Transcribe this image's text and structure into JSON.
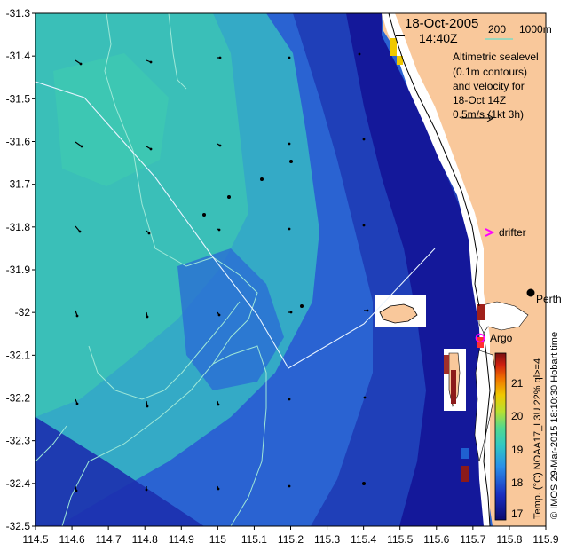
{
  "header": {
    "date": "18-Oct-2005",
    "time": "14:40Z",
    "isobath_labels": [
      "200",
      "1000m"
    ]
  },
  "info": {
    "lines": [
      "Altimetric sealevel",
      "(0.1m contours)",
      "and velocity for",
      "18-Oct 14Z",
      "0.5m/s (1kt 3h)"
    ]
  },
  "places": {
    "perth": "Perth",
    "drifter": "drifter",
    "argo": "Argo"
  },
  "colorbar": {
    "ticks": [
      "21",
      "20",
      "19",
      "18",
      "17"
    ],
    "label": "Temp. (°C) NOAA17_L3U 22% ql>=4"
  },
  "credit": "© IMOS 29-Mar-2015 18:10:30 Hobart time",
  "axes": {
    "y_ticks": [
      "-31.3",
      "-31.4",
      "-31.5",
      "-31.6",
      "-31.7",
      "-31.8",
      "-31.9",
      "-32",
      "-32.1",
      "-32.2",
      "-32.3",
      "-32.4",
      "-32.5"
    ],
    "x_ticks": [
      "114.5",
      "114.6",
      "114.7",
      "114.8",
      "114.9",
      "115",
      "115.1",
      "115.2",
      "115.3",
      "115.4",
      "115.5",
      "115.6",
      "115.7",
      "115.8",
      "115.9"
    ]
  },
  "colors": {
    "land": "#f9c89b",
    "ocean_deep": "#1a1aa0",
    "ocean_mid": "#2f7fe0",
    "ocean_warm": "#35c6a8",
    "contour": "#9fe8d8",
    "legend_line": "#66ddcc",
    "drifter": "#ff00ff",
    "argo": "#ff00ff"
  }
}
